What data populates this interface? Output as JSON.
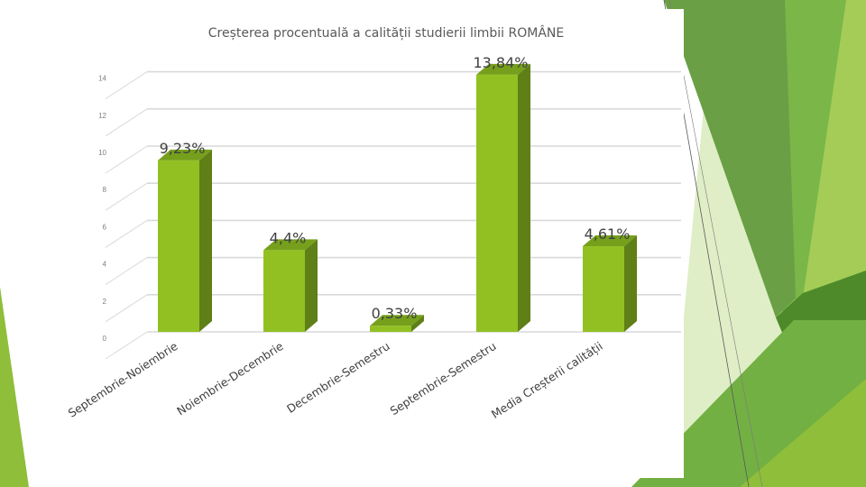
{
  "chart_data": {
    "type": "bar",
    "title": "Creșterea procentuală a calității studierii limbii ROMÂNE",
    "categories": [
      "Septembrie-Noiembrie",
      "Noiembrie-Decembrie",
      "Decembrie-Semestru",
      "Septembrie-Semestru",
      "Media Creșterii calității"
    ],
    "values": [
      9.23,
      4.4,
      0.33,
      13.84,
      4.61
    ],
    "data_labels": [
      "9,23%",
      "4,4%",
      "0,33%",
      "13,84%",
      "4,61%"
    ],
    "yticks": [
      "0",
      "2",
      "4",
      "6",
      "8",
      "10",
      "12",
      "14"
    ],
    "ylim": [
      0,
      14
    ],
    "grid": true,
    "legend": "none",
    "style": "3d-column",
    "colors": {
      "bar_front": "#92c023",
      "bar_side": "#5f7f17",
      "bar_top": "#76a01c",
      "grid": "#d9d9d9"
    }
  },
  "slide_colors": [
    "#7ab648",
    "#4e8a2a",
    "#a4cc57",
    "#d6e8b3",
    "#8fbe3a"
  ]
}
